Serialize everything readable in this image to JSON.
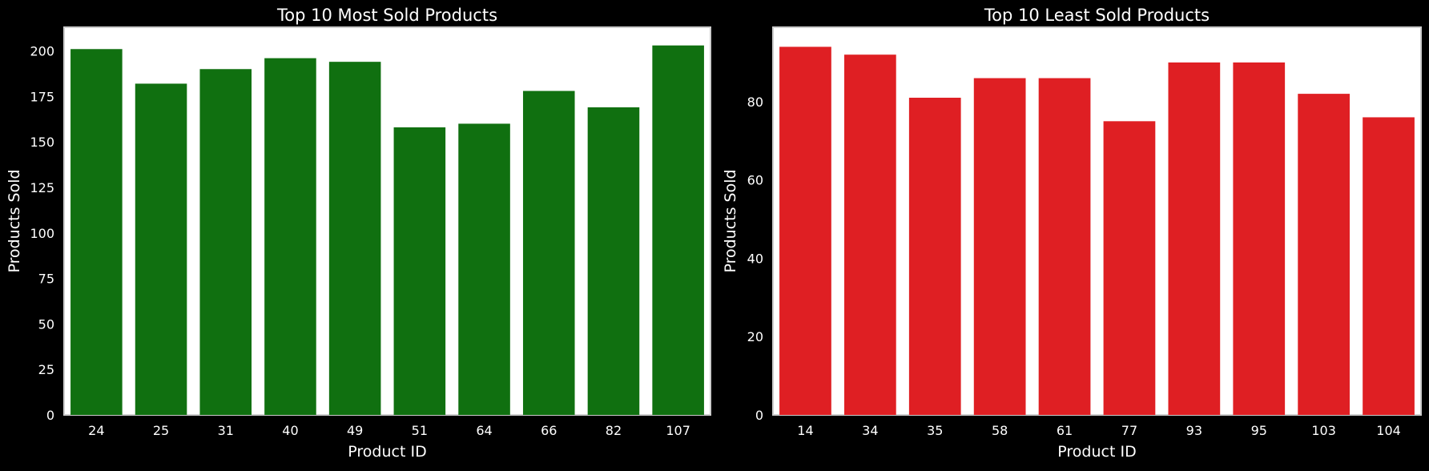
{
  "page": {
    "background": "#000000"
  },
  "chart_data": [
    {
      "type": "bar",
      "title": "Top 10 Most Sold Products",
      "xlabel": "Product ID",
      "ylabel": "Products Sold",
      "categories": [
        "24",
        "25",
        "31",
        "40",
        "49",
        "51",
        "64",
        "66",
        "82",
        "107"
      ],
      "values": [
        201,
        182,
        190,
        196,
        194,
        158,
        160,
        178,
        169,
        203
      ],
      "ylim": [
        0,
        213
      ],
      "yticks": [
        0,
        25,
        50,
        75,
        100,
        125,
        150,
        175,
        200
      ],
      "bar_color": "#107010",
      "plot_background": "#ffffff",
      "grid": false,
      "legend": "none"
    },
    {
      "type": "bar",
      "title": "Top 10 Least Sold Products",
      "xlabel": "Product ID",
      "ylabel": "Products Sold",
      "categories": [
        "14",
        "34",
        "35",
        "58",
        "61",
        "77",
        "93",
        "95",
        "103",
        "104"
      ],
      "values": [
        94,
        92,
        81,
        86,
        86,
        75,
        90,
        90,
        82,
        76
      ],
      "ylim": [
        0,
        99
      ],
      "yticks": [
        0,
        20,
        40,
        60,
        80
      ],
      "bar_color": "#df1f23",
      "plot_background": "#ffffff",
      "grid": false,
      "legend": "none"
    }
  ]
}
